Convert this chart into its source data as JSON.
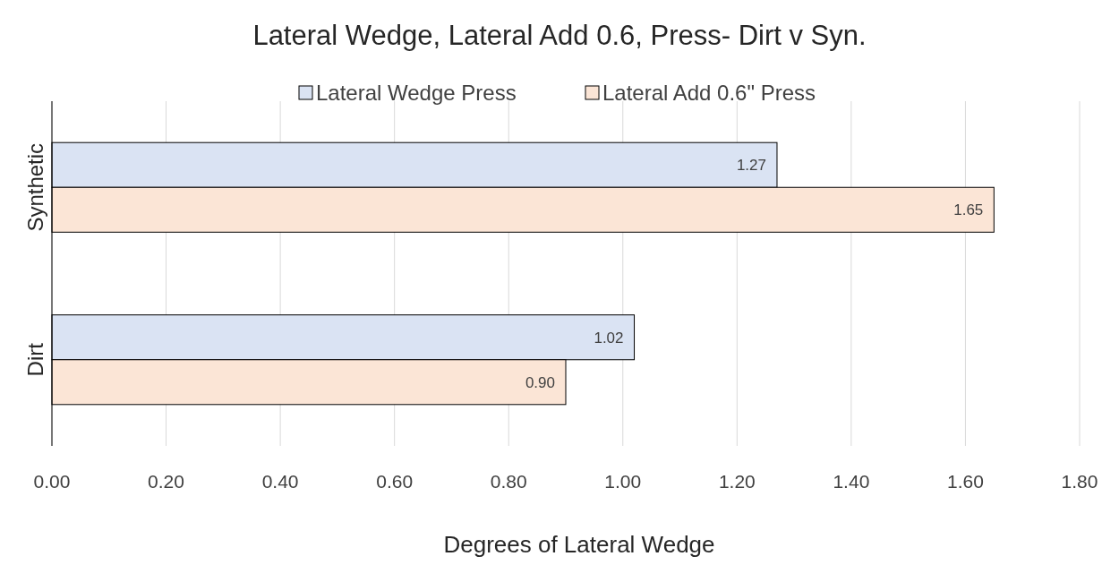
{
  "chart_data": {
    "type": "bar",
    "orientation": "horizontal",
    "title": "Lateral Wedge, Lateral Add 0.6, Press- Dirt v Syn.",
    "xlabel": "Degrees of Lateral Wedge",
    "categories": [
      "Synthetic",
      "Dirt"
    ],
    "series": [
      {
        "name": "Lateral Wedge Press",
        "color": "#dae3f3",
        "values": [
          1.27,
          1.02
        ],
        "value_labels": [
          "1.27",
          "1.02"
        ]
      },
      {
        "name": "Lateral Add 0.6\" Press",
        "color": "#fbe5d6",
        "values": [
          1.65,
          0.9
        ],
        "value_labels": [
          "1.65",
          "0.90"
        ]
      }
    ],
    "xlim": [
      0,
      1.8
    ],
    "xticks": [
      {
        "value": 0,
        "label": "0.00"
      },
      {
        "value": 0.2,
        "label": "0.20"
      },
      {
        "value": 0.4,
        "label": "0.40"
      },
      {
        "value": 0.6,
        "label": "0.60"
      },
      {
        "value": 0.8,
        "label": "0.80"
      },
      {
        "value": 1,
        "label": "1.00"
      },
      {
        "value": 1.2,
        "label": "1.20"
      },
      {
        "value": 1.4,
        "label": "1.40"
      },
      {
        "value": 1.6,
        "label": "1.60"
      },
      {
        "value": 1.8,
        "label": "1.80"
      }
    ],
    "grid": "x",
    "legend": "top"
  }
}
